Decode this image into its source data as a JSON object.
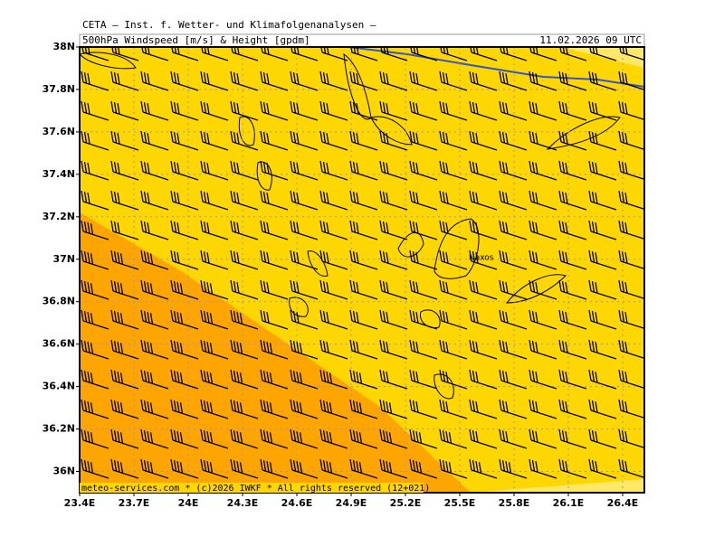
{
  "header": "CETA — Inst. f. Wetter- und Klimafolgenanalysen —",
  "map": {
    "title": "500hPa Windspeed [m/s] & Height [gpdm]",
    "valid_time": "11.02.2026 09 UTC",
    "lon_range": [
      23.4,
      26.52
    ],
    "lat_range": [
      35.9,
      38
    ],
    "lon_ticks": [
      {
        "value": 23.4,
        "label": "23.4E"
      },
      {
        "value": 23.7,
        "label": "23.7E"
      },
      {
        "value": 24.0,
        "label": "24E"
      },
      {
        "value": 24.3,
        "label": "24.3E"
      },
      {
        "value": 24.6,
        "label": "24.6E"
      },
      {
        "value": 24.9,
        "label": "24.9E"
      },
      {
        "value": 25.2,
        "label": "25.2E"
      },
      {
        "value": 25.5,
        "label": "25.5E"
      },
      {
        "value": 25.8,
        "label": "25.8E"
      },
      {
        "value": 26.1,
        "label": "26.1E"
      },
      {
        "value": 26.4,
        "label": "26.4E"
      }
    ],
    "lat_ticks": [
      {
        "value": 38,
        "label": "38N"
      },
      {
        "value": 37.8,
        "label": "37.8N"
      },
      {
        "value": 37.6,
        "label": "37.6N"
      },
      {
        "value": 37.4,
        "label": "37.4N"
      },
      {
        "value": 37.2,
        "label": "37.2N"
      },
      {
        "value": 37,
        "label": "37N"
      },
      {
        "value": 36.8,
        "label": "36.8N"
      },
      {
        "value": 36.6,
        "label": "36.6N"
      },
      {
        "value": 36.4,
        "label": "36.4N"
      },
      {
        "value": 36.2,
        "label": "36.2N"
      },
      {
        "value": 36,
        "label": "36N"
      }
    ],
    "places": [
      {
        "name": "Naxos",
        "lon": 25.55,
        "lat": 37.0
      }
    ]
  },
  "footer": "meteo-services.com * (c)2026 IWKF * All rights reserved (12+021)"
}
